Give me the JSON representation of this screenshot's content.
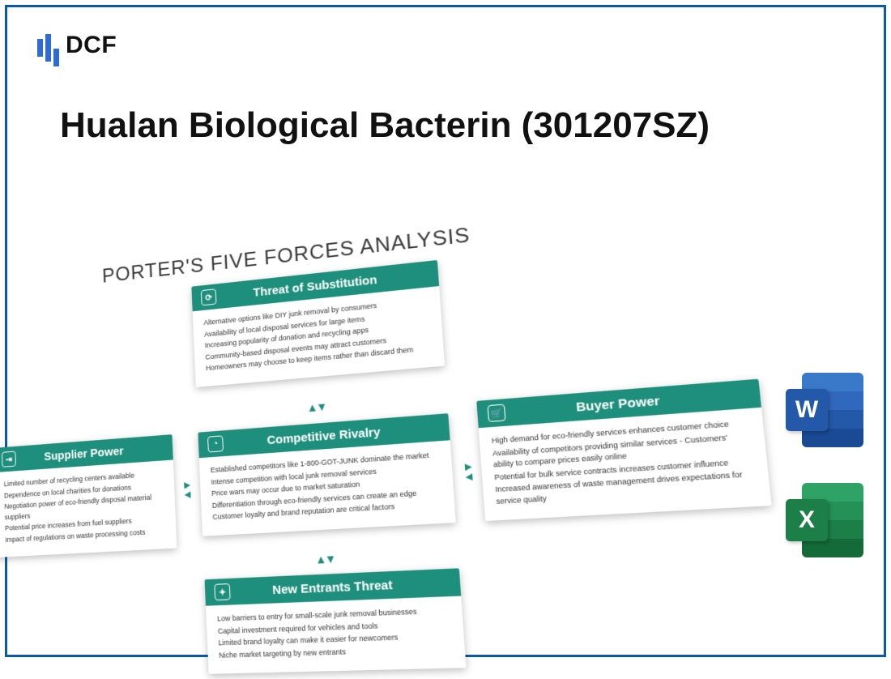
{
  "brand": {
    "name": "DCF"
  },
  "title": "Hualan Biological Bacterin (301207SZ)",
  "diagram": {
    "heading": "PORTER'S FIVE FORCES ANALYSIS",
    "accent_color": "#1e8f7c",
    "cards": {
      "substitution": {
        "title": "Threat of Substitution",
        "icon_glyph": "⟳",
        "items": [
          "Alternative options like DIY junk removal by consumers",
          "Availability of local disposal services for large items",
          "Increasing popularity of donation and recycling apps",
          "Community-based disposal events may attract customers",
          "Homeowners may choose to keep items rather than discard them"
        ]
      },
      "rivalry": {
        "title": "Competitive Rivalry",
        "icon_glyph": "◔",
        "items": [
          "Established competitors like 1-800-GOT-JUNK dominate the market",
          "Intense competition with local junk removal services",
          "Price wars may occur due to market saturation",
          "Differentiation through eco-friendly services can create an edge",
          "Customer loyalty and brand reputation are critical factors"
        ]
      },
      "supplier": {
        "title": "Supplier Power",
        "icon_glyph": "⇥",
        "items": [
          "Limited number of recycling centers available",
          "Dependence on local charities for donations",
          "Negotiation power of eco-friendly disposal material suppliers",
          "Potential price increases from fuel suppliers",
          "Impact of regulations on waste processing costs"
        ]
      },
      "buyer": {
        "title": "Buyer Power",
        "icon_glyph": "🛒",
        "items": [
          "High demand for eco-friendly services enhances customer choice",
          "Availability of competitors providing similar services  - Customers' ability to compare prices easily online",
          "Potential for bulk service contracts increases customer influence",
          "Increased awareness of waste management drives expectations for service quality"
        ]
      },
      "entrants": {
        "title": "New Entrants Threat",
        "icon_glyph": "✦",
        "items": [
          "Low barriers to entry for small-scale junk removal businesses",
          "Capital investment required for vehicles and tools",
          "Limited brand loyalty can make it easier for newcomers",
          "Niche market targeting by new entrants"
        ]
      }
    }
  },
  "apps": {
    "word": {
      "letter": "W"
    },
    "excel": {
      "letter": "X"
    }
  }
}
